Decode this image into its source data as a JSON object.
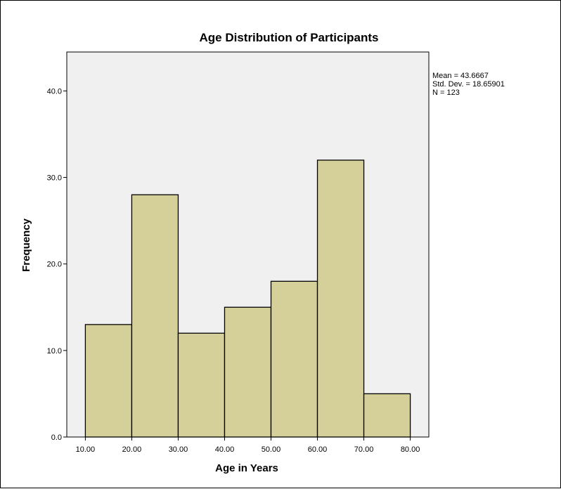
{
  "chart_data": {
    "type": "bar",
    "title": "Age Distribution of Participants",
    "xlabel": "Age in Years",
    "ylabel": "Frequency",
    "bin_edges": [
      10,
      20,
      30,
      40,
      50,
      60,
      70,
      80
    ],
    "x_tick_labels": [
      "10.00",
      "20.00",
      "30.00",
      "40.00",
      "50.00",
      "60.00",
      "70.00",
      "80.00"
    ],
    "values": [
      13,
      28,
      12,
      15,
      18,
      32,
      5
    ],
    "xlim": [
      6,
      84
    ],
    "ylim": [
      0,
      44.5
    ],
    "y_ticks": [
      0,
      10,
      20,
      30,
      40
    ],
    "y_tick_labels": [
      "0.0",
      "10.0",
      "20.0",
      "30.0",
      "40.0"
    ],
    "grid": false,
    "legend_position": "top-right",
    "stats": {
      "mean": "Mean = 43.6667",
      "std_dev": "Std. Dev. = 18.65901",
      "n": "N = 123"
    },
    "colors": {
      "bar_fill": "#d5d09a",
      "bar_stroke": "#000000",
      "plot_background": "#f0f0f0"
    }
  }
}
